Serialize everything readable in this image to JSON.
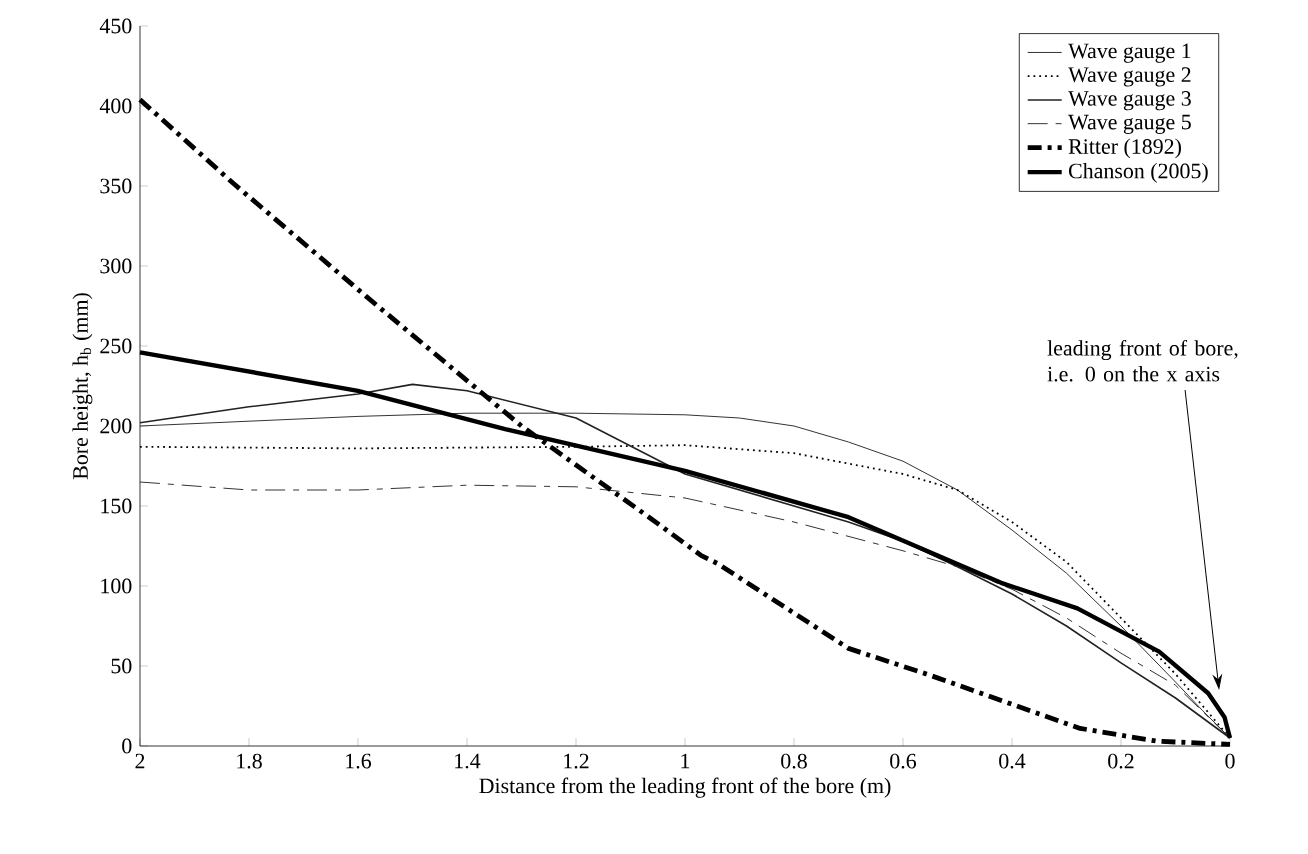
{
  "chart_data": {
    "type": "line",
    "xlabel": "Distance from the leading front of the bore (m)",
    "ylabel": "Bore height, h$_{b}$ (mm)",
    "xlim": [
      2,
      0
    ],
    "ylim": [
      0,
      450
    ],
    "xticks": [
      2,
      1.8,
      1.6,
      1.4,
      1.2,
      1,
      0.8,
      0.6,
      0.4,
      0.2,
      0
    ],
    "yticks": [
      0,
      50,
      100,
      150,
      200,
      250,
      300,
      350,
      400,
      450
    ],
    "grid": false,
    "legend": "top right",
    "marker": "none",
    "series": [
      {
        "name": "Wave gauge 1",
        "color": "#333333",
        "line_style": "solid",
        "x": [
          2,
          1.8,
          1.6,
          1.4,
          1.2,
          1.0,
          0.9,
          0.8,
          0.7,
          0.6,
          0.5,
          0.4,
          0.3,
          0.2,
          0.1,
          0.05,
          0
        ],
        "values": [
          200,
          203,
          206,
          208,
          208,
          207,
          205,
          200,
          190,
          178,
          160,
          135,
          108,
          75,
          40,
          22,
          5
        ]
      },
      {
        "name": "Wave gauge 2",
        "color": "#000000",
        "line_style": "dotted",
        "x": [
          2,
          1.6,
          1.2,
          1.0,
          0.8,
          0.6,
          0.5,
          0.4,
          0.3,
          0.2,
          0.1,
          0.05,
          0
        ],
        "values": [
          187,
          186,
          187,
          188,
          183,
          170,
          160,
          140,
          115,
          80,
          45,
          25,
          5
        ]
      },
      {
        "name": "Wave gauge 3",
        "color": "#222222",
        "line_style": "solid",
        "x": [
          2,
          1.8,
          1.6,
          1.5,
          1.4,
          1.2,
          1.0,
          0.9,
          0.8,
          0.7,
          0.6,
          0.5,
          0.4,
          0.3,
          0.2,
          0.1,
          0
        ],
        "values": [
          202,
          212,
          220,
          226,
          222,
          205,
          170,
          160,
          150,
          140,
          128,
          112,
          95,
          75,
          52,
          30,
          5
        ]
      },
      {
        "name": "Wave gauge 5",
        "color": "#333333",
        "line_style": "dashed",
        "x": [
          2,
          1.8,
          1.6,
          1.4,
          1.2,
          1.0,
          0.8,
          0.6,
          0.5,
          0.4,
          0.3,
          0.2,
          0.1,
          0
        ],
        "values": [
          165,
          160,
          160,
          163,
          162,
          155,
          140,
          122,
          112,
          98,
          80,
          58,
          38,
          5
        ]
      },
      {
        "name": "Ritter (1892)",
        "color": "#000000",
        "line_style": "dashdot",
        "x": [
          2,
          1.83,
          1.585,
          1.3,
          1.066,
          0.97,
          0.94,
          0.7,
          0.557,
          0.416,
          0.275,
          0.134,
          0
        ],
        "values": [
          404,
          352,
          281,
          200,
          143,
          119,
          114,
          61,
          45,
          28,
          11,
          3,
          1
        ]
      },
      {
        "name": "Chanson (2005)",
        "color": "#000000",
        "line_style": "solid",
        "x": [
          2,
          1.6,
          1.33,
          1.0,
          0.7,
          0.42,
          0.28,
          0.13,
          0.04,
          0.01,
          0
        ],
        "values": [
          246,
          222,
          198,
          172,
          143,
          102,
          86,
          59,
          33,
          18,
          5
        ]
      }
    ],
    "annotations": [
      {
        "text": "leading front of bore, i.e. 0 on the x axis",
        "x": 0.02,
        "y": 35
      }
    ]
  }
}
